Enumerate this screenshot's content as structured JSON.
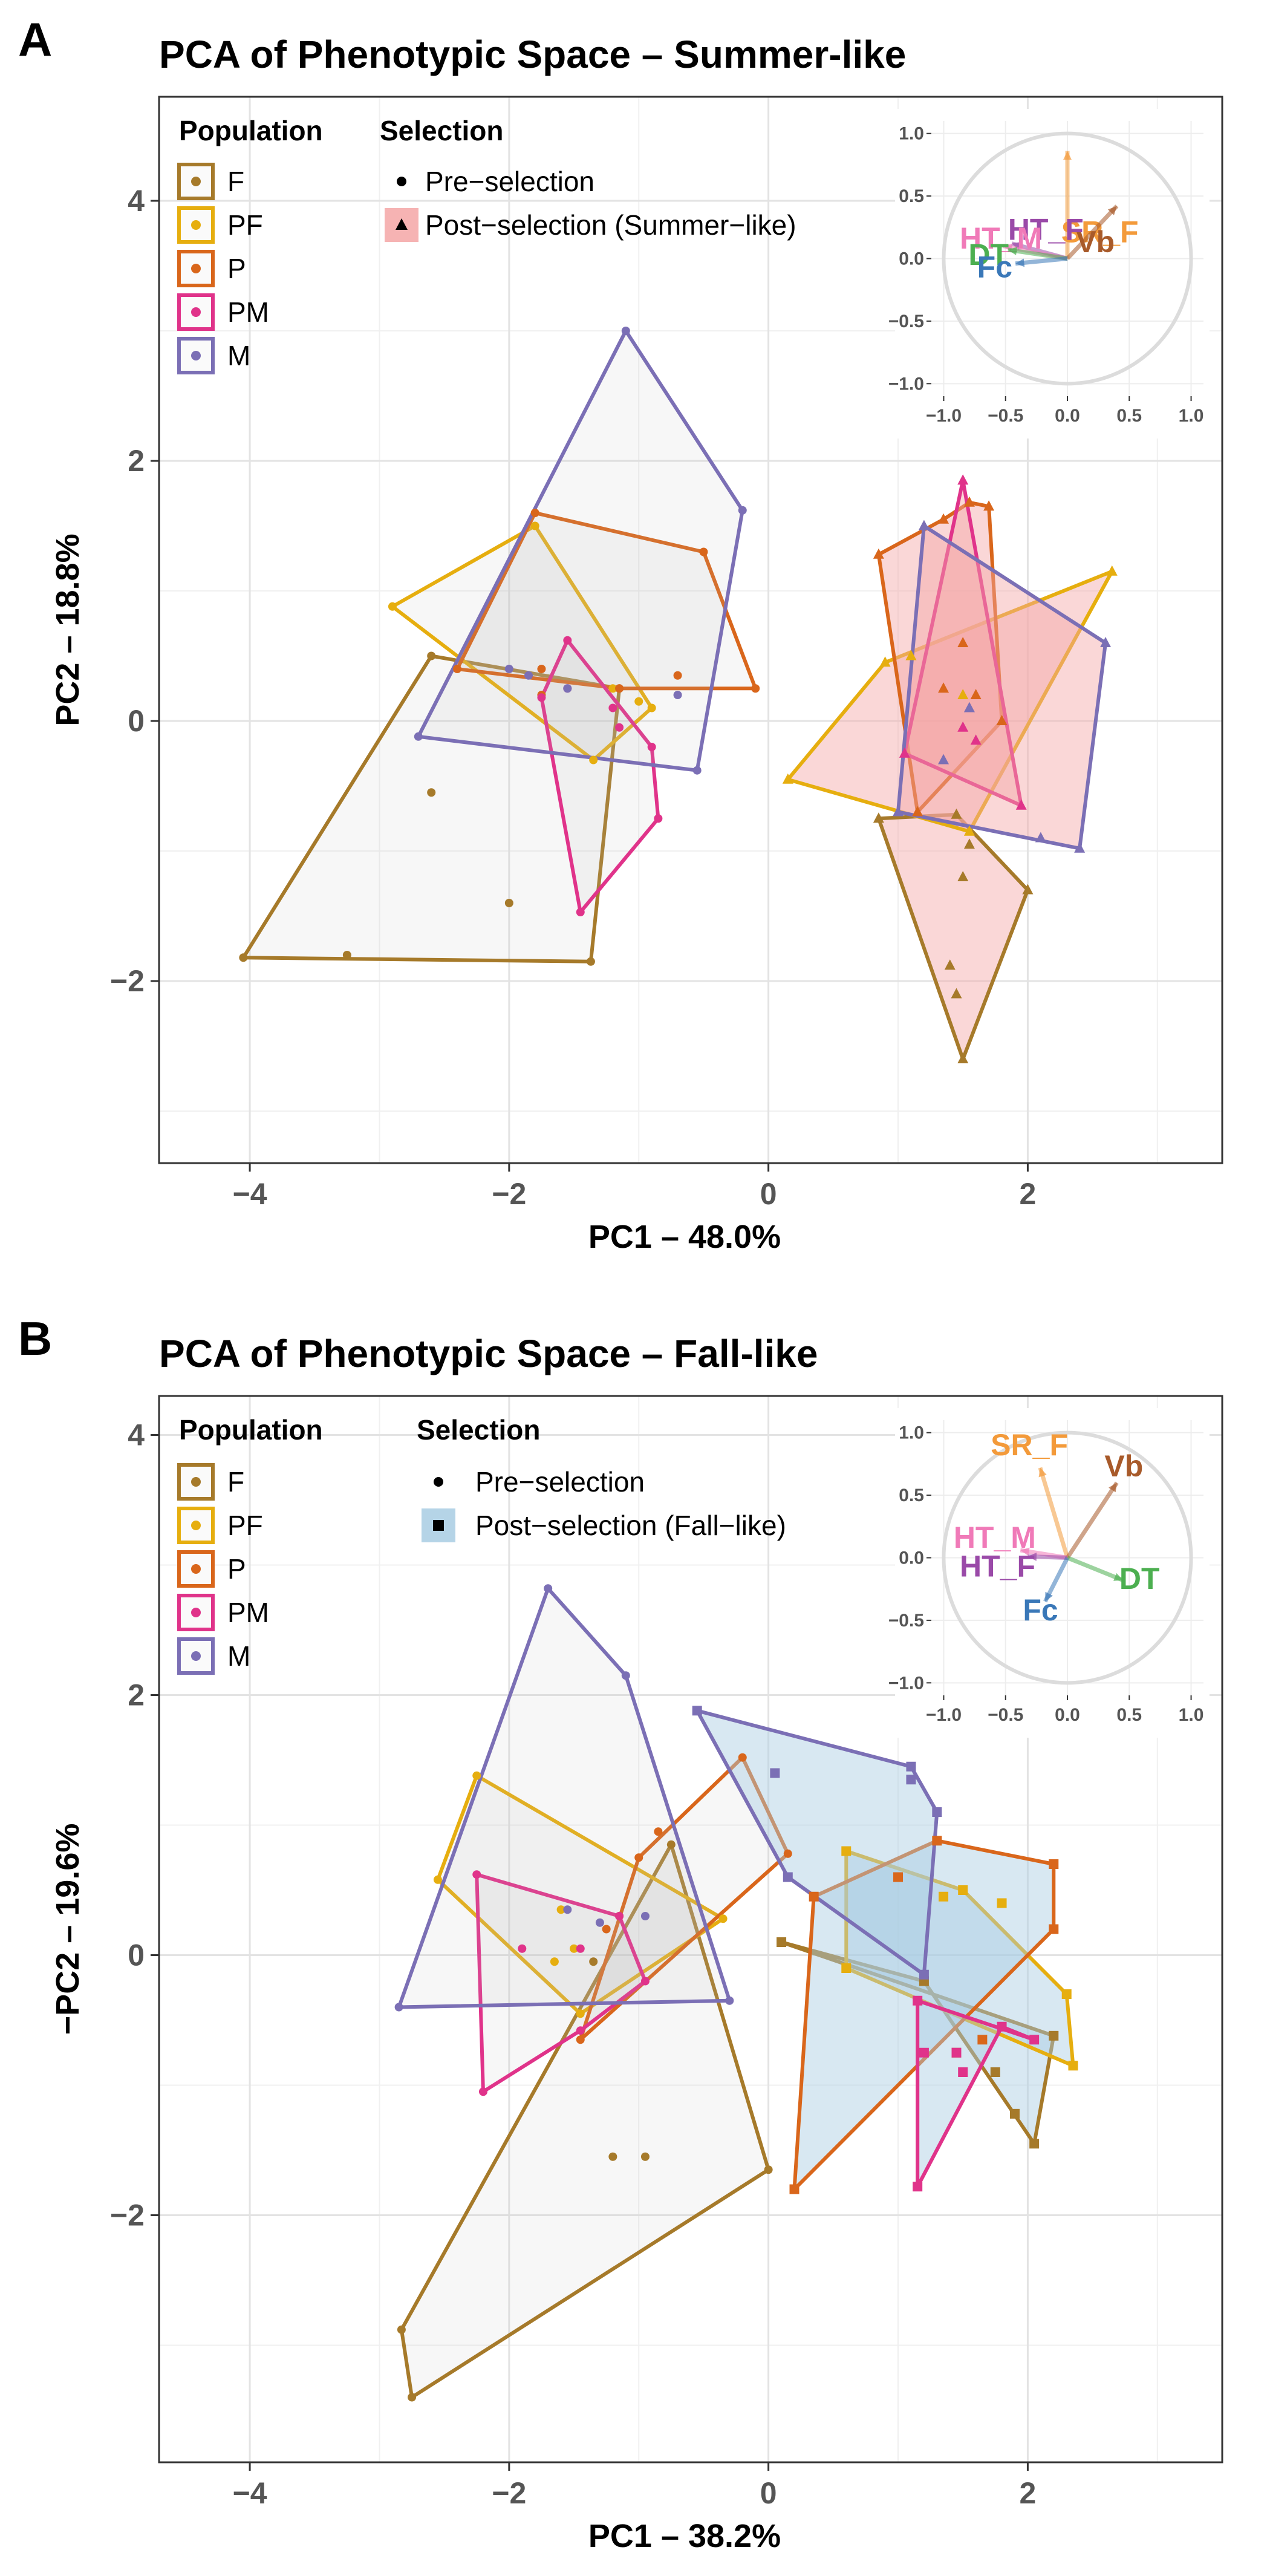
{
  "colors": {
    "F": "#a67a2a",
    "PF": "#e6ae0f",
    "P": "#d9661b",
    "PM": "#e0338a",
    "M": "#7b6fb5",
    "pre_fill": "#bfbfbf",
    "summer_fill": "#f4a6a6",
    "fall_fill": "#a8cce3",
    "SR_F": "#f39a3a",
    "Vb": "#a85a2a",
    "HT_F": "#9a4aa8",
    "HT_M": "#f07ab8",
    "DT": "#4caf50",
    "Fc": "#3a78b8"
  },
  "chart_data": [
    {
      "panel": "A",
      "type": "scatter",
      "title": "PCA of Phenotypic Space – Summer-like",
      "xlabel": "PC1 – 48.0%",
      "ylabel": "PC2 – 18.8%",
      "xlim": [
        -4.7,
        3.5
      ],
      "ylim": [
        -3.4,
        4.8
      ],
      "xticks": [
        -4,
        -2,
        0,
        2
      ],
      "yticks": [
        -2,
        0,
        2,
        4
      ],
      "tick_labels": {
        "x": [
          "−4",
          "−2",
          "0",
          "2"
        ],
        "y": [
          "−2",
          "0",
          "2",
          "4"
        ]
      },
      "grid": true,
      "legend": {
        "population_title": "Population",
        "populations": [
          "F",
          "PF",
          "P",
          "PM",
          "M"
        ],
        "selection_title": "Selection",
        "pre_label": "Pre−selection",
        "post_label": "Post−selection (Summer−like)",
        "post_marker": "triangle"
      },
      "pre": {
        "F": {
          "hull": [
            [
              -2.6,
              0.5
            ],
            [
              -4.05,
              -1.82
            ],
            [
              -1.37,
              -1.85
            ],
            [
              -1.15,
              0.25
            ]
          ],
          "points": [
            [
              -2.6,
              -0.55
            ],
            [
              -3.25,
              -1.8
            ],
            [
              -2.0,
              -1.4
            ]
          ]
        },
        "PF": {
          "hull": [
            [
              -2.9,
              0.88
            ],
            [
              -1.8,
              1.5
            ],
            [
              -0.9,
              0.1
            ],
            [
              -1.35,
              -0.3
            ]
          ],
          "points": [
            [
              -1.2,
              0.25
            ],
            [
              -1.0,
              0.15
            ]
          ]
        },
        "P": {
          "hull": [
            [
              -2.4,
              0.4
            ],
            [
              -1.8,
              1.6
            ],
            [
              -0.5,
              1.3
            ],
            [
              -0.1,
              0.25
            ],
            [
              -1.15,
              0.25
            ]
          ],
          "points": [
            [
              -0.7,
              0.35
            ],
            [
              -1.75,
              0.2
            ],
            [
              -1.75,
              0.4
            ]
          ]
        },
        "PM": {
          "hull": [
            [
              -1.55,
              0.62
            ],
            [
              -0.9,
              -0.2
            ],
            [
              -0.85,
              -0.75
            ],
            [
              -1.45,
              -1.47
            ],
            [
              -1.75,
              0.18
            ]
          ],
          "points": [
            [
              -1.15,
              -0.05
            ],
            [
              -1.2,
              0.1
            ],
            [
              -1.55,
              0.25
            ]
          ]
        },
        "M": {
          "hull": [
            [
              -1.1,
              3.0
            ],
            [
              -0.2,
              1.62
            ],
            [
              -0.55,
              -0.38
            ],
            [
              -2.7,
              -0.12
            ]
          ],
          "points": [
            [
              -1.85,
              0.35
            ],
            [
              -0.7,
              0.2
            ],
            [
              -2.0,
              0.4
            ],
            [
              -1.55,
              0.25
            ]
          ]
        }
      },
      "post": {
        "F": {
          "hull": [
            [
              0.85,
              -0.75
            ],
            [
              1.45,
              -0.72
            ],
            [
              2.0,
              -1.3
            ],
            [
              1.5,
              -2.6
            ]
          ],
          "points": [
            [
              1.5,
              -1.2
            ],
            [
              1.4,
              -1.88
            ],
            [
              1.45,
              -2.1
            ],
            [
              1.55,
              -0.95
            ]
          ]
        },
        "PF": {
          "hull": [
            [
              0.15,
              -0.45
            ],
            [
              0.9,
              0.45
            ],
            [
              2.65,
              1.15
            ],
            [
              1.55,
              -0.85
            ]
          ],
          "points": [
            [
              1.1,
              0.5
            ],
            [
              1.5,
              0.2
            ]
          ]
        },
        "P": {
          "hull": [
            [
              0.85,
              1.28
            ],
            [
              1.35,
              1.55
            ],
            [
              1.55,
              1.68
            ],
            [
              1.7,
              1.65
            ],
            [
              1.8,
              0.0
            ],
            [
              1.15,
              -0.7
            ]
          ],
          "points": [
            [
              1.35,
              0.25
            ],
            [
              1.6,
              0.2
            ],
            [
              1.5,
              0.6
            ]
          ]
        },
        "PM": {
          "hull": [
            [
              1.5,
              1.85
            ],
            [
              1.95,
              -0.65
            ],
            [
              1.05,
              -0.25
            ]
          ],
          "points": [
            [
              1.6,
              -0.15
            ],
            [
              1.5,
              -0.05
            ]
          ]
        },
        "M": {
          "hull": [
            [
              1.2,
              1.5
            ],
            [
              2.6,
              0.6
            ],
            [
              2.4,
              -0.98
            ],
            [
              1.0,
              -0.7
            ]
          ],
          "points": [
            [
              1.55,
              0.1
            ],
            [
              2.1,
              -0.9
            ],
            [
              1.35,
              -0.3
            ]
          ]
        }
      },
      "inset": {
        "ticks": [
          "−1.0",
          "−0.5",
          "0.0",
          "0.5",
          "1.0"
        ],
        "vectors": {
          "SR_F": [
            0.0,
            0.86
          ],
          "Vb": [
            0.4,
            0.42
          ],
          "HT_F": [
            -0.45,
            0.12
          ],
          "HT_M": [
            -0.52,
            0.1
          ],
          "DT": [
            -0.48,
            0.07
          ],
          "Fc": [
            -0.42,
            -0.04
          ]
        },
        "labels": {
          "SR_F": "SR_F",
          "Vb": "Vb",
          "HT_F": "HT_F",
          "HT_M": "HT_M",
          "DT": "DT",
          "Fc": "Fc"
        }
      }
    },
    {
      "panel": "B",
      "type": "scatter",
      "title": "PCA of Phenotypic Space – Fall-like",
      "xlabel": "PC1 – 38.2%",
      "ylabel": "−PC2 – 19.6%",
      "xlim": [
        -4.7,
        3.5
      ],
      "ylim": [
        -3.9,
        4.3
      ],
      "xticks": [
        -4,
        -2,
        0,
        2
      ],
      "yticks": [
        -2,
        0,
        2,
        4
      ],
      "tick_labels": {
        "x": [
          "−4",
          "−2",
          "0",
          "2"
        ],
        "y": [
          "−2",
          "0",
          "2",
          "4"
        ]
      },
      "grid": true,
      "legend": {
        "population_title": "Population",
        "populations": [
          "F",
          "PF",
          "P",
          "PM",
          "M"
        ],
        "selection_title": "Selection",
        "pre_label": "Pre−selection",
        "post_label": "Post−selection (Fall−like)",
        "post_marker": "square"
      },
      "pre": {
        "F": {
          "hull": [
            [
              -0.75,
              0.85
            ],
            [
              0.0,
              -1.65
            ],
            [
              -2.75,
              -3.4
            ],
            [
              -2.83,
              -2.88
            ]
          ],
          "points": [
            [
              -1.2,
              -1.55
            ],
            [
              -0.95,
              -1.55
            ],
            [
              -1.35,
              -0.05
            ],
            [
              -1.15,
              0.3
            ]
          ]
        },
        "PF": {
          "hull": [
            [
              -2.25,
              1.38
            ],
            [
              -0.35,
              0.28
            ],
            [
              -1.45,
              -0.45
            ],
            [
              -2.55,
              0.58
            ]
          ],
          "points": [
            [
              -1.5,
              0.05
            ],
            [
              -1.6,
              0.35
            ],
            [
              -1.65,
              -0.05
            ]
          ]
        },
        "P": {
          "hull": [
            [
              -1.0,
              0.75
            ],
            [
              -0.2,
              1.52
            ],
            [
              0.15,
              0.78
            ],
            [
              -1.45,
              -0.65
            ]
          ],
          "points": [
            [
              -1.25,
              0.2
            ],
            [
              -0.85,
              0.95
            ]
          ]
        },
        "PM": {
          "hull": [
            [
              -2.25,
              0.62
            ],
            [
              -1.15,
              0.3
            ],
            [
              -0.95,
              -0.2
            ],
            [
              -1.45,
              -0.58
            ],
            [
              -2.2,
              -1.05
            ]
          ],
          "points": [
            [
              -1.45,
              0.05
            ],
            [
              -1.9,
              0.05
            ]
          ]
        },
        "M": {
          "hull": [
            [
              -1.7,
              2.82
            ],
            [
              -1.1,
              2.15
            ],
            [
              -0.3,
              -0.35
            ],
            [
              -2.85,
              -0.4
            ]
          ],
          "points": [
            [
              -0.95,
              0.3
            ],
            [
              -1.55,
              0.35
            ],
            [
              -1.3,
              0.25
            ]
          ]
        }
      },
      "post": {
        "F": {
          "hull": [
            [
              0.1,
              0.1
            ],
            [
              2.2,
              -0.62
            ],
            [
              2.05,
              -1.45
            ],
            [
              1.2,
              -0.2
            ]
          ],
          "points": [
            [
              1.9,
              -1.22
            ],
            [
              1.75,
              -0.9
            ],
            [
              1.45,
              -0.75
            ]
          ]
        },
        "PF": {
          "hull": [
            [
              0.6,
              0.8
            ],
            [
              1.5,
              0.5
            ],
            [
              2.3,
              -0.3
            ],
            [
              2.35,
              -0.85
            ],
            [
              0.6,
              -0.1
            ]
          ],
          "points": [
            [
              1.35,
              0.45
            ],
            [
              1.8,
              0.4
            ]
          ]
        },
        "P": {
          "hull": [
            [
              0.35,
              0.45
            ],
            [
              1.3,
              0.88
            ],
            [
              2.2,
              0.7
            ],
            [
              2.2,
              0.2
            ],
            [
              0.2,
              -1.8
            ]
          ],
          "points": [
            [
              1.0,
              0.6
            ],
            [
              1.65,
              -0.65
            ]
          ]
        },
        "PM": {
          "hull": [
            [
              1.15,
              -0.35
            ],
            [
              2.05,
              -0.65
            ],
            [
              1.8,
              -0.55
            ],
            [
              1.15,
              -1.78
            ]
          ],
          "points": [
            [
              1.45,
              -0.75
            ],
            [
              1.5,
              -0.9
            ],
            [
              1.2,
              -0.75
            ]
          ]
        },
        "M": {
          "hull": [
            [
              -0.55,
              1.88
            ],
            [
              1.1,
              1.45
            ],
            [
              1.3,
              1.1
            ],
            [
              1.2,
              -0.15
            ],
            [
              0.15,
              0.6
            ]
          ],
          "points": [
            [
              0.05,
              1.4
            ],
            [
              1.1,
              1.35
            ]
          ]
        }
      },
      "inset": {
        "ticks": [
          "−1.0",
          "−0.5",
          "0.0",
          "0.5",
          "1.0"
        ],
        "vectors": {
          "SR_F": [
            -0.22,
            0.72
          ],
          "Vb": [
            0.4,
            0.6
          ],
          "HT_M": [
            -0.38,
            0.06
          ],
          "HT_F": [
            -0.32,
            0.01
          ],
          "DT": [
            0.45,
            -0.18
          ],
          "Fc": [
            -0.18,
            -0.35
          ]
        },
        "labels": {
          "SR_F": "SR_F",
          "Vb": "Vb",
          "HT_M": "HT_M",
          "HT_F": "HT_F",
          "DT": "DT",
          "Fc": "Fc"
        }
      }
    }
  ]
}
